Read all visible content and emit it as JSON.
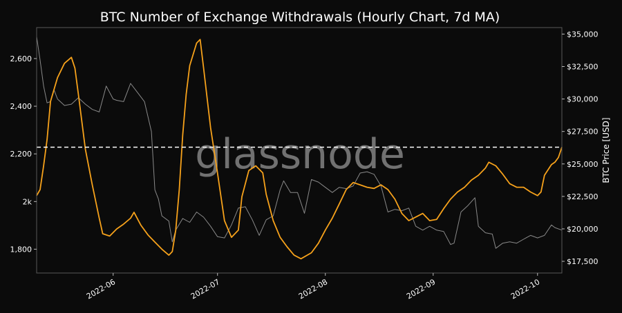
{
  "chart_data": {
    "type": "line",
    "title": "BTC Number of Exchange Withdrawals (Hourly Chart, 7d MA)",
    "y2label": "BTC Price [USD]",
    "watermark": "glassnode",
    "x_range": [
      "2022-05-10",
      "2022-10-08"
    ],
    "ylim_left": [
      1700,
      2730
    ],
    "ylim_right": [
      16600,
      35500
    ],
    "x_ticks": [
      {
        "date": "2022-06-01",
        "label": "2022-06"
      },
      {
        "date": "2022-07-01",
        "label": "2022-07"
      },
      {
        "date": "2022-08-01",
        "label": "2022-08"
      },
      {
        "date": "2022-09-01",
        "label": "2022-09"
      },
      {
        "date": "2022-10-01",
        "label": "2022-10"
      }
    ],
    "y_ticks_left": [
      {
        "value": 1800,
        "label": "1,800"
      },
      {
        "value": 2000,
        "label": "2k"
      },
      {
        "value": 2200,
        "label": "2,200"
      },
      {
        "value": 2400,
        "label": "2,400"
      },
      {
        "value": 2600,
        "label": "2,600"
      }
    ],
    "y_ticks_right": [
      {
        "value": 17500,
        "label": "$17,500"
      },
      {
        "value": 20000,
        "label": "$20,000"
      },
      {
        "value": 22500,
        "label": "$22,500"
      },
      {
        "value": 25000,
        "label": "$25,000"
      },
      {
        "value": 27500,
        "label": "$27,500"
      },
      {
        "value": 30000,
        "label": "$30,000"
      },
      {
        "value": 32500,
        "label": "$32,500"
      },
      {
        "value": 35000,
        "label": "$35,000"
      }
    ],
    "reference_line": {
      "axis": "left",
      "value": 2228,
      "style": "dashed",
      "color": "#ffffff"
    },
    "series": [
      {
        "axis": "left",
        "color": "#f7a21b",
        "points": [
          [
            "2022-05-10",
            2025
          ],
          [
            "2022-05-11",
            2050
          ],
          [
            "2022-05-12",
            2150
          ],
          [
            "2022-05-13",
            2260
          ],
          [
            "2022-05-14",
            2420
          ],
          [
            "2022-05-16",
            2520
          ],
          [
            "2022-05-18",
            2580
          ],
          [
            "2022-05-20",
            2605
          ],
          [
            "2022-05-21",
            2560
          ],
          [
            "2022-05-22",
            2450
          ],
          [
            "2022-05-24",
            2220
          ],
          [
            "2022-05-26",
            2070
          ],
          [
            "2022-05-28",
            1930
          ],
          [
            "2022-05-29",
            1865
          ],
          [
            "2022-05-31",
            1855
          ],
          [
            "2022-06-02",
            1885
          ],
          [
            "2022-06-04",
            1905
          ],
          [
            "2022-06-06",
            1930
          ],
          [
            "2022-06-07",
            1955
          ],
          [
            "2022-06-09",
            1900
          ],
          [
            "2022-06-11",
            1860
          ],
          [
            "2022-06-13",
            1830
          ],
          [
            "2022-06-15",
            1800
          ],
          [
            "2022-06-17",
            1775
          ],
          [
            "2022-06-18",
            1790
          ],
          [
            "2022-06-19",
            1880
          ],
          [
            "2022-06-20",
            2050
          ],
          [
            "2022-06-21",
            2280
          ],
          [
            "2022-06-22",
            2450
          ],
          [
            "2022-06-23",
            2570
          ],
          [
            "2022-06-25",
            2665
          ],
          [
            "2022-06-26",
            2680
          ],
          [
            "2022-06-27",
            2560
          ],
          [
            "2022-06-29",
            2310
          ],
          [
            "2022-07-01",
            2120
          ],
          [
            "2022-07-03",
            1920
          ],
          [
            "2022-07-05",
            1850
          ],
          [
            "2022-07-07",
            1880
          ],
          [
            "2022-07-08",
            2020
          ],
          [
            "2022-07-10",
            2130
          ],
          [
            "2022-07-12",
            2150
          ],
          [
            "2022-07-14",
            2120
          ],
          [
            "2022-07-15",
            2030
          ],
          [
            "2022-07-17",
            1920
          ],
          [
            "2022-07-19",
            1850
          ],
          [
            "2022-07-21",
            1810
          ],
          [
            "2022-07-23",
            1775
          ],
          [
            "2022-07-25",
            1760
          ],
          [
            "2022-07-28",
            1785
          ],
          [
            "2022-07-30",
            1825
          ],
          [
            "2022-08-01",
            1880
          ],
          [
            "2022-08-03",
            1930
          ],
          [
            "2022-08-05",
            1990
          ],
          [
            "2022-08-07",
            2050
          ],
          [
            "2022-08-09",
            2080
          ],
          [
            "2022-08-11",
            2070
          ],
          [
            "2022-08-13",
            2060
          ],
          [
            "2022-08-15",
            2055
          ],
          [
            "2022-08-17",
            2070
          ],
          [
            "2022-08-19",
            2050
          ],
          [
            "2022-08-21",
            2010
          ],
          [
            "2022-08-23",
            1950
          ],
          [
            "2022-08-25",
            1920
          ],
          [
            "2022-08-27",
            1935
          ],
          [
            "2022-08-29",
            1950
          ],
          [
            "2022-08-31",
            1920
          ],
          [
            "2022-09-02",
            1925
          ],
          [
            "2022-09-04",
            1970
          ],
          [
            "2022-09-06",
            2010
          ],
          [
            "2022-09-08",
            2040
          ],
          [
            "2022-09-10",
            2060
          ],
          [
            "2022-09-12",
            2090
          ],
          [
            "2022-09-14",
            2110
          ],
          [
            "2022-09-16",
            2140
          ],
          [
            "2022-09-17",
            2165
          ],
          [
            "2022-09-19",
            2150
          ],
          [
            "2022-09-21",
            2115
          ],
          [
            "2022-09-23",
            2075
          ],
          [
            "2022-09-25",
            2060
          ],
          [
            "2022-09-27",
            2060
          ],
          [
            "2022-09-29",
            2040
          ],
          [
            "2022-10-01",
            2025
          ],
          [
            "2022-10-02",
            2040
          ],
          [
            "2022-10-03",
            2110
          ],
          [
            "2022-10-05",
            2155
          ],
          [
            "2022-10-06",
            2165
          ],
          [
            "2022-10-07",
            2185
          ],
          [
            "2022-10-08",
            2228
          ]
        ]
      },
      {
        "axis": "right",
        "color": "#8a8a8a",
        "points": [
          [
            "2022-05-10",
            34800
          ],
          [
            "2022-05-11",
            33000
          ],
          [
            "2022-05-12",
            31000
          ],
          [
            "2022-05-13",
            29700
          ],
          [
            "2022-05-14",
            29800
          ],
          [
            "2022-05-15",
            30700
          ],
          [
            "2022-05-16",
            30000
          ],
          [
            "2022-05-18",
            29500
          ],
          [
            "2022-05-20",
            29600
          ],
          [
            "2022-05-22",
            30100
          ],
          [
            "2022-05-24",
            29600
          ],
          [
            "2022-05-26",
            29200
          ],
          [
            "2022-05-28",
            29000
          ],
          [
            "2022-05-30",
            31000
          ],
          [
            "2022-06-01",
            30000
          ],
          [
            "2022-06-02",
            29900
          ],
          [
            "2022-06-04",
            29800
          ],
          [
            "2022-06-06",
            31200
          ],
          [
            "2022-06-08",
            30500
          ],
          [
            "2022-06-10",
            29800
          ],
          [
            "2022-06-12",
            27500
          ],
          [
            "2022-06-13",
            23000
          ],
          [
            "2022-06-14",
            22300
          ],
          [
            "2022-06-15",
            21000
          ],
          [
            "2022-06-17",
            20600
          ],
          [
            "2022-06-18",
            19000
          ],
          [
            "2022-06-19",
            19900
          ],
          [
            "2022-06-21",
            20800
          ],
          [
            "2022-06-23",
            20500
          ],
          [
            "2022-06-25",
            21300
          ],
          [
            "2022-06-27",
            20900
          ],
          [
            "2022-06-29",
            20200
          ],
          [
            "2022-07-01",
            19400
          ],
          [
            "2022-07-03",
            19300
          ],
          [
            "2022-07-05",
            20300
          ],
          [
            "2022-07-07",
            21600
          ],
          [
            "2022-07-09",
            21700
          ],
          [
            "2022-07-11",
            20700
          ],
          [
            "2022-07-13",
            19500
          ],
          [
            "2022-07-15",
            20700
          ],
          [
            "2022-07-17",
            21000
          ],
          [
            "2022-07-19",
            23000
          ],
          [
            "2022-07-20",
            23700
          ],
          [
            "2022-07-22",
            22800
          ],
          [
            "2022-07-24",
            22800
          ],
          [
            "2022-07-26",
            21200
          ],
          [
            "2022-07-28",
            23800
          ],
          [
            "2022-07-30",
            23600
          ],
          [
            "2022-08-01",
            23200
          ],
          [
            "2022-08-03",
            22800
          ],
          [
            "2022-08-05",
            23200
          ],
          [
            "2022-08-07",
            23100
          ],
          [
            "2022-08-09",
            23300
          ],
          [
            "2022-08-11",
            24300
          ],
          [
            "2022-08-13",
            24400
          ],
          [
            "2022-08-15",
            24200
          ],
          [
            "2022-08-17",
            23300
          ],
          [
            "2022-08-19",
            21300
          ],
          [
            "2022-08-21",
            21500
          ],
          [
            "2022-08-23",
            21400
          ],
          [
            "2022-08-25",
            21600
          ],
          [
            "2022-08-27",
            20200
          ],
          [
            "2022-08-29",
            19900
          ],
          [
            "2022-08-31",
            20200
          ],
          [
            "2022-09-02",
            19900
          ],
          [
            "2022-09-04",
            19800
          ],
          [
            "2022-09-06",
            18800
          ],
          [
            "2022-09-07",
            18900
          ],
          [
            "2022-09-09",
            21300
          ],
          [
            "2022-09-11",
            21800
          ],
          [
            "2022-09-13",
            22400
          ],
          [
            "2022-09-14",
            20200
          ],
          [
            "2022-09-16",
            19700
          ],
          [
            "2022-09-18",
            19600
          ],
          [
            "2022-09-19",
            18500
          ],
          [
            "2022-09-21",
            18900
          ],
          [
            "2022-09-23",
            19000
          ],
          [
            "2022-09-25",
            18900
          ],
          [
            "2022-09-27",
            19200
          ],
          [
            "2022-09-29",
            19500
          ],
          [
            "2022-10-01",
            19300
          ],
          [
            "2022-10-03",
            19500
          ],
          [
            "2022-10-05",
            20300
          ],
          [
            "2022-10-06",
            20100
          ],
          [
            "2022-10-08",
            19900
          ]
        ]
      }
    ]
  }
}
